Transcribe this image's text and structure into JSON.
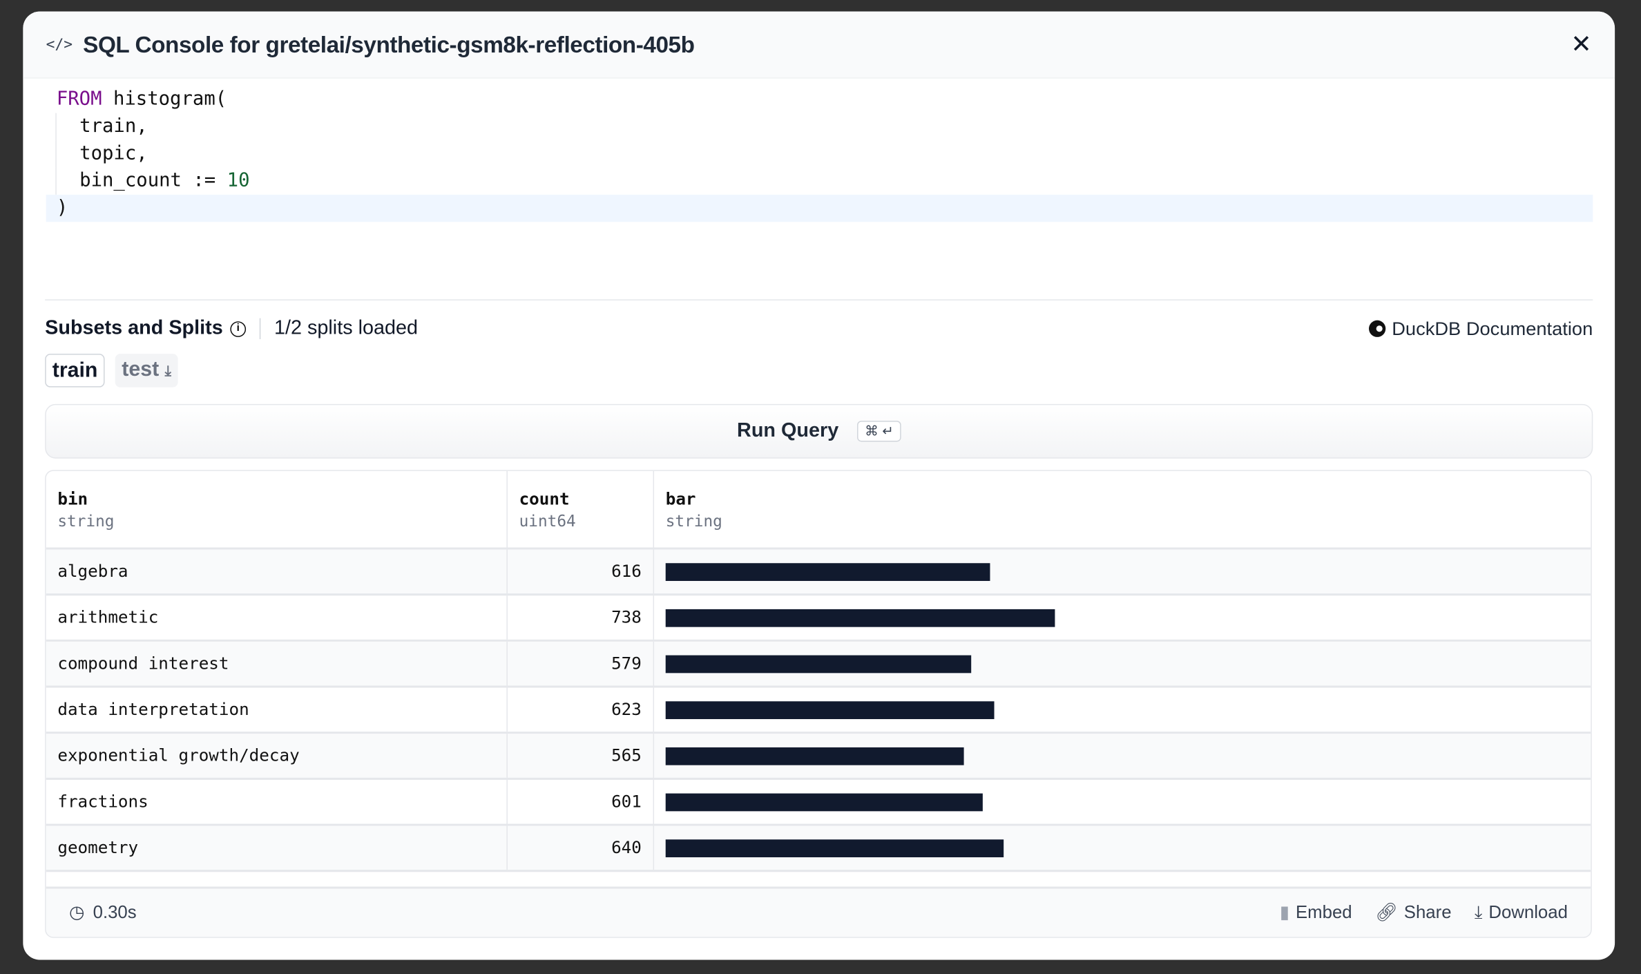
{
  "header": {
    "title": "SQL Console for gretelai/synthetic-gsm8k-reflection-405b",
    "icon": "code-icon",
    "close_icon": "close-icon"
  },
  "editor": {
    "lines": [
      {
        "kw": "FROM",
        "rest": " histogram("
      },
      {
        "text": "train,"
      },
      {
        "text": "topic,"
      },
      {
        "text": "bin_count := ",
        "num": "10"
      },
      {
        "text": ")"
      }
    ]
  },
  "subsets": {
    "label": "Subsets and Splits",
    "loaded": "1/2 splits loaded",
    "docs": "DuckDB Documentation"
  },
  "splits": [
    {
      "label": "train",
      "active": true
    },
    {
      "label": "test",
      "active": false,
      "icon": "download-icon"
    }
  ],
  "run": {
    "label": "Run Query",
    "shortcut": "⌘ ↵"
  },
  "table": {
    "columns": [
      {
        "name": "bin",
        "type": "string"
      },
      {
        "name": "count",
        "type": "uint64"
      },
      {
        "name": "bar",
        "type": "string"
      }
    ],
    "rows": [
      {
        "bin": "algebra",
        "count": "616"
      },
      {
        "bin": "arithmetic",
        "count": "738"
      },
      {
        "bin": "compound interest",
        "count": "579"
      },
      {
        "bin": "data interpretation",
        "count": "623"
      },
      {
        "bin": "exponential growth/decay",
        "count": "565"
      },
      {
        "bin": "fractions",
        "count": "601"
      },
      {
        "bin": "geometry",
        "count": "640"
      }
    ],
    "bar_color": "#111a2e"
  },
  "footer": {
    "time": "0.30s",
    "embed": "Embed",
    "share": "Share",
    "download": "Download"
  }
}
